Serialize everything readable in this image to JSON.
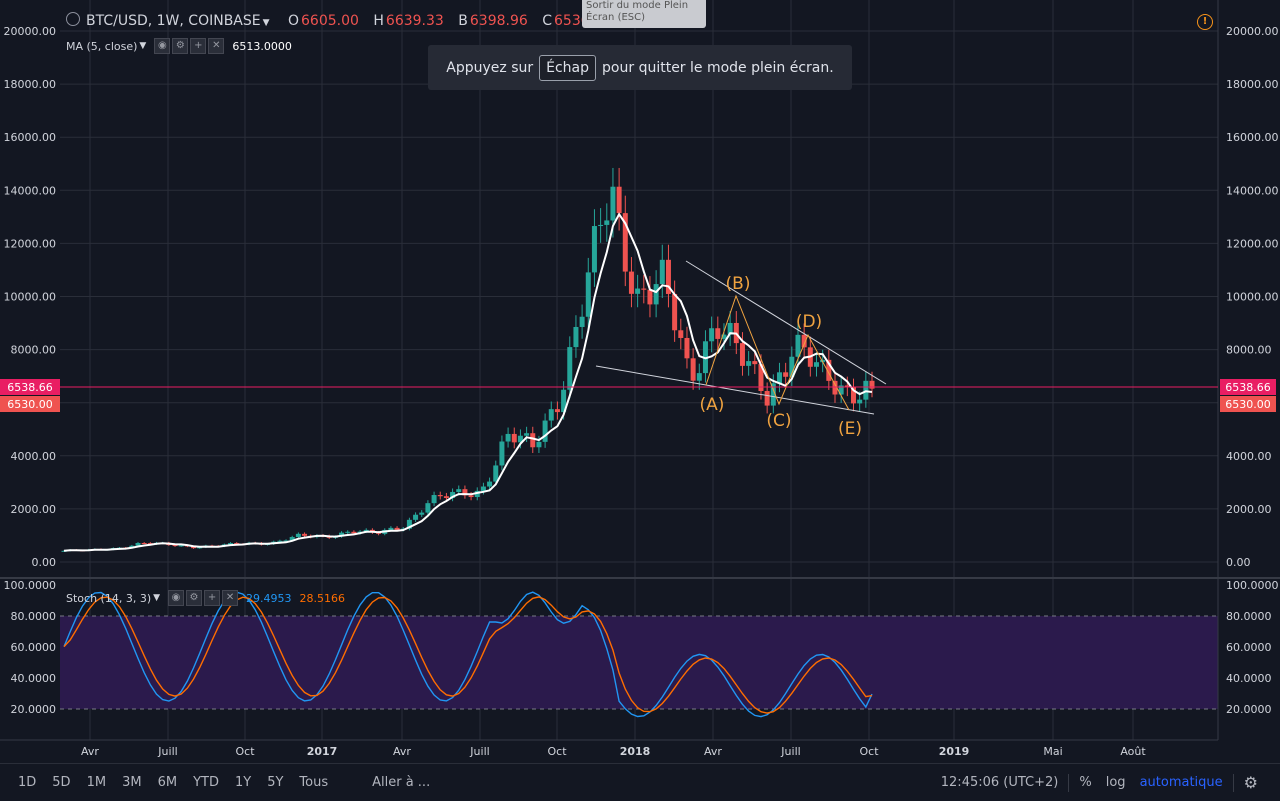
{
  "header": {
    "symbol": "BTC/USD, 1W, COINBASE",
    "ohlc": [
      {
        "label": "O",
        "value": "6605.00"
      },
      {
        "label": "H",
        "value": "6639.33"
      },
      {
        "label": "B",
        "value": "6398.96"
      },
      {
        "label": "C",
        "value": "6530.00"
      }
    ],
    "ma_study": {
      "name": "MA (5, close)",
      "value": "6513.0000"
    }
  },
  "tooltip": {
    "text": "Sortir du mode Plein Écran (ESC)"
  },
  "toast": {
    "before": "Appuyez sur",
    "key": "Échap",
    "after": "pour quitter le mode plein écran."
  },
  "stoch_study": {
    "name": "Stoch (14, 3, 3)",
    "k_value": "29.4953",
    "d_value": "28.5166"
  },
  "price_labels": {
    "last": "6538.66",
    "close": "6530.00"
  },
  "price_axis_ticks": [
    "20000.00",
    "18000.00",
    "16000.00",
    "14000.00",
    "12000.00",
    "10000.00",
    "8000.00",
    "6000.00",
    "4000.00",
    "2000.00",
    "0.00"
  ],
  "stoch_axis_ticks": [
    "100.0000",
    "80.0000",
    "60.0000",
    "40.0000",
    "20.0000"
  ],
  "time_axis_labels": [
    "Avr",
    "Juill",
    "Oct",
    "2017",
    "Avr",
    "Juill",
    "Oct",
    "2018",
    "Avr",
    "Juill",
    "Oct",
    "2019",
    "Mai",
    "Août"
  ],
  "wave_labels": [
    "(A)",
    "(B)",
    "(C)",
    "(D)",
    "(E)"
  ],
  "timeframes": [
    "1D",
    "5D",
    "1M",
    "3M",
    "6M",
    "YTD",
    "1Y",
    "5Y",
    "Tous"
  ],
  "goto_label": "Aller à ...",
  "clock": "12:45:06 (UTC+2)",
  "scale_options": {
    "percent": "%",
    "log": "log",
    "auto": "automatique"
  },
  "icons": [
    "logo-icon",
    "alert-icon",
    "eye-icon",
    "settings-icon",
    "plus-icon",
    "close-icon",
    "gear-icon"
  ],
  "colors": {
    "background": "#131722",
    "up_candle": "#26a69a",
    "down_candle": "#ef5350",
    "ma_line": "#ffffff",
    "stoch_k": "#2196f3",
    "stoch_d": "#ff6d00",
    "stoch_band": "#2b1a4c",
    "last_price": "#e91e63",
    "wave_label": "#f0a340",
    "auto_scale": "#2962ff"
  },
  "chart_data": {
    "type": "candlestick",
    "title": "BTC/USD, 1W, COINBASE",
    "x": [
      "2016-03",
      "2016-04",
      "2016-05",
      "2016-06",
      "2016-07",
      "2016-08",
      "2016-09",
      "2016-10",
      "2016-11",
      "2016-12",
      "2017-01",
      "2017-02",
      "2017-03",
      "2017-04",
      "2017-05",
      "2017-06",
      "2017-07",
      "2017-08",
      "2017-09",
      "2017-10",
      "2017-11",
      "2017-12",
      "2018-01",
      "2018-02",
      "2018-03",
      "2018-04",
      "2018-05",
      "2018-06",
      "2018-07",
      "2018-08",
      "2018-09",
      "2018-10"
    ],
    "close_approx": [
      420,
      440,
      530,
      700,
      650,
      580,
      610,
      700,
      740,
      960,
      950,
      1180,
      1050,
      1350,
      2300,
      2500,
      2700,
      4700,
      4300,
      6400,
      10000,
      14000,
      10200,
      10300,
      7000,
      9200,
      7500,
      6400,
      8200,
      7000,
      6600,
      6530
    ],
    "ma5_last": 6513,
    "ylim": [
      0,
      20000
    ],
    "annotations": [
      "(A)",
      "(B)",
      "(C)",
      "(D)",
      "(E)"
    ],
    "stochastic": {
      "k_last": 29.4953,
      "d_last": 28.5166,
      "ylim": [
        0,
        100
      ],
      "bands": [
        20,
        80
      ]
    }
  }
}
